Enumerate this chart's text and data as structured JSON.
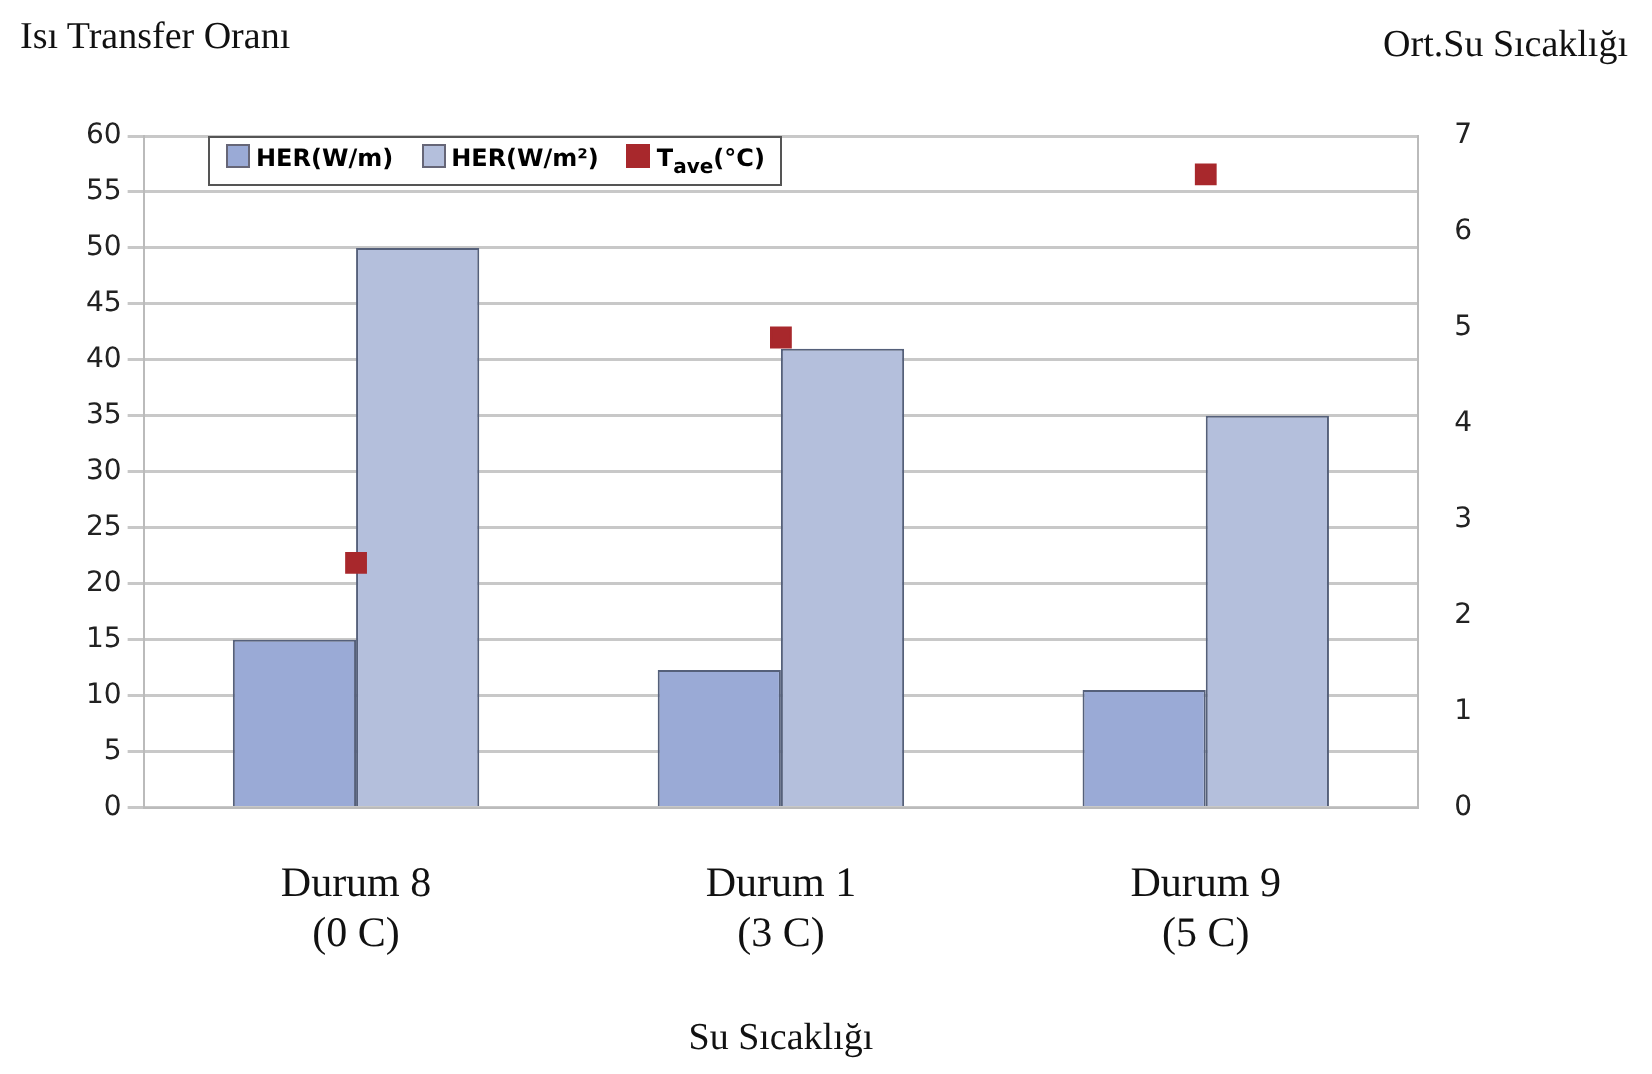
{
  "chart_data": {
    "type": "bar",
    "ylabel": "Isı Transfer Oranı",
    "y2label": "Ort.Su Sıcaklığı",
    "xlabel": "Su Sıcaklığı",
    "categories": [
      "Durum 8\n(0 C)",
      "Durum 1\n(3 C)",
      "Durum 9\n(5 C)"
    ],
    "series": [
      {
        "name": "HER(W/m)",
        "color": "#9aaad6",
        "values": [
          15,
          12.3,
          10.5
        ]
      },
      {
        "name": "HER(W/m²)",
        "color": "#b4bfdc",
        "values": [
          50,
          41,
          35
        ]
      },
      {
        "name": "T$_{ave}$(°C)",
        "type": "scatter",
        "axis": "y2",
        "color": "#a8282c",
        "values": [
          2.55,
          4.9,
          6.6
        ]
      }
    ],
    "ylim": [
      0,
      60
    ],
    "yticks": [
      0,
      5,
      10,
      15,
      20,
      25,
      30,
      35,
      40,
      45,
      50,
      55,
      60
    ],
    "y2lim": [
      0,
      7
    ],
    "y2ticks": [
      0,
      1,
      2,
      3,
      4,
      5,
      6,
      7
    ],
    "grid": "y",
    "legend": "top left",
    "marker": "square"
  }
}
